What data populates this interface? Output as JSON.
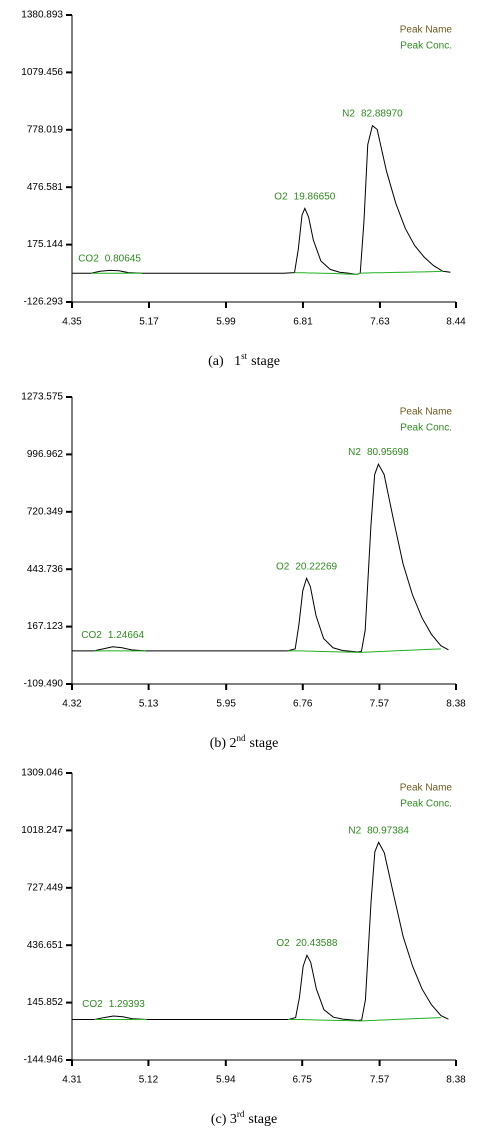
{
  "chart_data": [
    {
      "type": "line",
      "legend_labels": [
        "Peak Name",
        "Peak Conc."
      ],
      "caption": {
        "main": "(a)   1",
        "sup": "st",
        "rest": "stage"
      },
      "peaks": [
        {
          "name": "CO2",
          "conc": "0.80645"
        },
        {
          "name": "O2",
          "conc": "19.86650"
        },
        {
          "name": "N2",
          "conc": "82.88970"
        }
      ],
      "xlim": [
        4.35,
        8.44
      ],
      "xticks": [
        4.35,
        5.17,
        5.99,
        6.81,
        7.63,
        8.44
      ],
      "ylim": [
        -126.293,
        1380.893
      ],
      "yticks": [
        -126.293,
        175.144,
        476.581,
        778.019,
        1079.456,
        1380.893
      ],
      "x": [
        4.35,
        4.55,
        4.65,
        4.75,
        4.85,
        4.95,
        5.1,
        6.6,
        6.72,
        6.76,
        6.8,
        6.83,
        6.87,
        6.92,
        7.0,
        7.1,
        7.2,
        7.3,
        7.38,
        7.42,
        7.46,
        7.5,
        7.55,
        7.6,
        7.7,
        7.8,
        7.9,
        8.0,
        8.1,
        8.2,
        8.3,
        8.38
      ],
      "series": [
        {
          "color": "#000000",
          "values": [
            25,
            25,
            35,
            40,
            38,
            28,
            25,
            25,
            28,
            150,
            330,
            365,
            320,
            200,
            90,
            45,
            30,
            25,
            18,
            25,
            300,
            700,
            800,
            780,
            560,
            390,
            260,
            170,
            110,
            65,
            35,
            30
          ]
        },
        {
          "color": "#22b022",
          "values": [
            null,
            25,
            25,
            25,
            25,
            25,
            25,
            null,
            28,
            27,
            27,
            27,
            26,
            26,
            25,
            24,
            22,
            20,
            18,
            25,
            26,
            26,
            27,
            27,
            28,
            29,
            30,
            31,
            32,
            33,
            35,
            null
          ]
        }
      ]
    },
    {
      "type": "line",
      "legend_labels": [
        "Peak Name",
        "Peak Conc."
      ],
      "caption": {
        "main": "(b) 2",
        "sup": "nd",
        "rest": "stage"
      },
      "peaks": [
        {
          "name": "CO2",
          "conc": "1.24664"
        },
        {
          "name": "O2",
          "conc": "20.22269"
        },
        {
          "name": "N2",
          "conc": "80.95698"
        }
      ],
      "xlim": [
        4.32,
        8.38
      ],
      "xticks": [
        4.32,
        5.13,
        5.95,
        6.76,
        7.57,
        8.38
      ],
      "ylim": [
        -109.49,
        1273.575
      ],
      "yticks": [
        {
          "value": -109.49,
          "label": "-109.490"
        },
        167.123,
        443.736,
        720.349,
        996.962,
        1273.575
      ],
      "x": [
        4.32,
        4.55,
        4.65,
        4.75,
        4.85,
        4.95,
        5.1,
        5.95,
        6.6,
        6.68,
        6.72,
        6.76,
        6.8,
        6.84,
        6.9,
        6.98,
        7.08,
        7.18,
        7.28,
        7.34,
        7.38,
        7.42,
        7.48,
        7.52,
        7.56,
        7.62,
        7.72,
        7.82,
        7.92,
        8.02,
        8.12,
        8.22,
        8.3
      ],
      "series": [
        {
          "color": "#000000",
          "values": [
            50,
            50,
            60,
            70,
            65,
            55,
            50,
            50,
            50,
            60,
            180,
            340,
            400,
            360,
            220,
            110,
            65,
            52,
            48,
            45,
            48,
            150,
            650,
            900,
            950,
            900,
            680,
            470,
            320,
            210,
            130,
            75,
            55
          ]
        },
        {
          "color": "#22b022",
          "values": [
            null,
            50,
            50,
            50,
            50,
            50,
            50,
            null,
            50,
            50,
            50,
            50,
            49,
            49,
            48,
            47,
            46,
            45,
            44,
            43,
            43,
            44,
            45,
            46,
            47,
            48,
            50,
            52,
            54,
            56,
            58,
            60,
            null
          ]
        }
      ]
    },
    {
      "type": "line",
      "legend_labels": [
        "Peak Name",
        "Peak Conc."
      ],
      "caption": {
        "main": "(c) 3",
        "sup": "rd",
        "rest": "stage"
      },
      "peaks": [
        {
          "name": "CO2",
          "conc": "1.29393"
        },
        {
          "name": "O2",
          "conc": "20.43588"
        },
        {
          "name": "N2",
          "conc": "80.97384"
        }
      ],
      "xlim": [
        4.31,
        8.38
      ],
      "xticks": [
        4.31,
        5.12,
        5.94,
        6.75,
        7.57,
        8.38
      ],
      "ylim": [
        -144.946,
        1309.046
      ],
      "yticks": [
        -144.946,
        145.852,
        436.651,
        727.449,
        1018.247,
        1309.046
      ],
      "x": [
        4.31,
        4.55,
        4.65,
        4.75,
        4.85,
        4.95,
        5.1,
        5.94,
        6.6,
        6.68,
        6.72,
        6.76,
        6.8,
        6.84,
        6.9,
        6.98,
        7.08,
        7.18,
        7.28,
        7.34,
        7.38,
        7.42,
        7.48,
        7.52,
        7.56,
        7.62,
        7.72,
        7.82,
        7.92,
        8.02,
        8.12,
        8.22,
        8.3
      ],
      "series": [
        {
          "color": "#000000",
          "values": [
            60,
            60,
            70,
            78,
            74,
            64,
            60,
            60,
            60,
            70,
            170,
            330,
            386,
            350,
            215,
            110,
            72,
            62,
            58,
            55,
            58,
            160,
            660,
            910,
            958,
            905,
            690,
            480,
            330,
            215,
            135,
            80,
            62
          ]
        },
        {
          "color": "#22b022",
          "values": [
            null,
            60,
            60,
            60,
            60,
            60,
            60,
            null,
            60,
            60,
            60,
            60,
            59,
            59,
            58,
            57,
            56,
            55,
            54,
            53,
            53,
            54,
            55,
            56,
            57,
            58,
            60,
            62,
            64,
            66,
            68,
            70,
            null
          ]
        }
      ]
    }
  ]
}
